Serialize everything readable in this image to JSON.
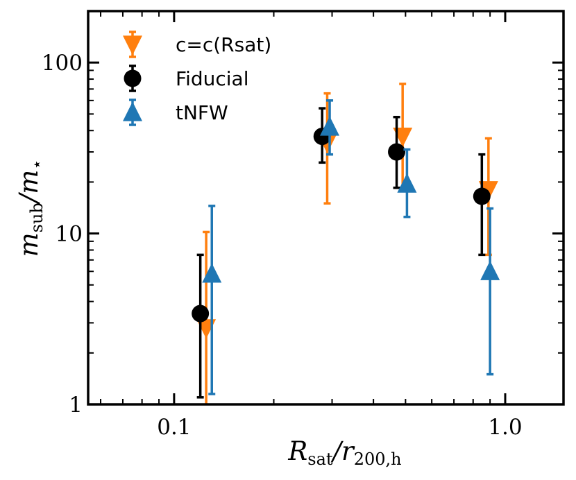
{
  "chart_data": {
    "type": "scatter",
    "x_scale": "log",
    "y_scale": "log",
    "xlim": [
      0.055,
      1.5
    ],
    "ylim": [
      1,
      200
    ],
    "x_ticks": [
      {
        "value": 0.1,
        "label": "0.1"
      },
      {
        "value": 1.0,
        "label": "1.0"
      }
    ],
    "y_ticks": [
      {
        "value": 1,
        "label": "1"
      },
      {
        "value": 10,
        "label": "10"
      },
      {
        "value": 100,
        "label": "100"
      }
    ],
    "xlabel": {
      "main": "R",
      "sub": "sat",
      "sep": "/r",
      "sub2": "200,h"
    },
    "ylabel": {
      "main": "m",
      "sub": "sub",
      "sep": "/m",
      "sub2": "⋆"
    },
    "legend_position": "upper-left",
    "series": [
      {
        "name": "c=c(Rsat)",
        "color": "#ff7f0e",
        "marker": "triangle-down",
        "points": [
          {
            "x": 0.125,
            "y": 2.8,
            "y_lo": 0.9,
            "y_hi": 10.2
          },
          {
            "x": 0.29,
            "y": 34,
            "y_lo": 15,
            "y_hi": 66
          },
          {
            "x": 0.49,
            "y": 37,
            "y_lo": 18,
            "y_hi": 75
          },
          {
            "x": 0.89,
            "y": 18,
            "y_lo": 7.5,
            "y_hi": 36
          }
        ]
      },
      {
        "name": "Fiducial",
        "color": "#000000",
        "marker": "circle",
        "points": [
          {
            "x": 0.12,
            "y": 3.4,
            "y_lo": 1.1,
            "y_hi": 7.5
          },
          {
            "x": 0.28,
            "y": 37,
            "y_lo": 26,
            "y_hi": 54
          },
          {
            "x": 0.47,
            "y": 30,
            "y_lo": 18.5,
            "y_hi": 48
          },
          {
            "x": 0.85,
            "y": 16.5,
            "y_lo": 7.5,
            "y_hi": 29
          }
        ]
      },
      {
        "name": "tNFW",
        "color": "#1f77b4",
        "marker": "triangle-up",
        "points": [
          {
            "x": 0.13,
            "y": 5.8,
            "y_lo": 1.15,
            "y_hi": 14.5
          },
          {
            "x": 0.295,
            "y": 42,
            "y_lo": 29,
            "y_hi": 60
          },
          {
            "x": 0.505,
            "y": 19.5,
            "y_lo": 12.5,
            "y_hi": 31
          },
          {
            "x": 0.9,
            "y": 6,
            "y_lo": 1.5,
            "y_hi": 14
          }
        ]
      }
    ]
  }
}
